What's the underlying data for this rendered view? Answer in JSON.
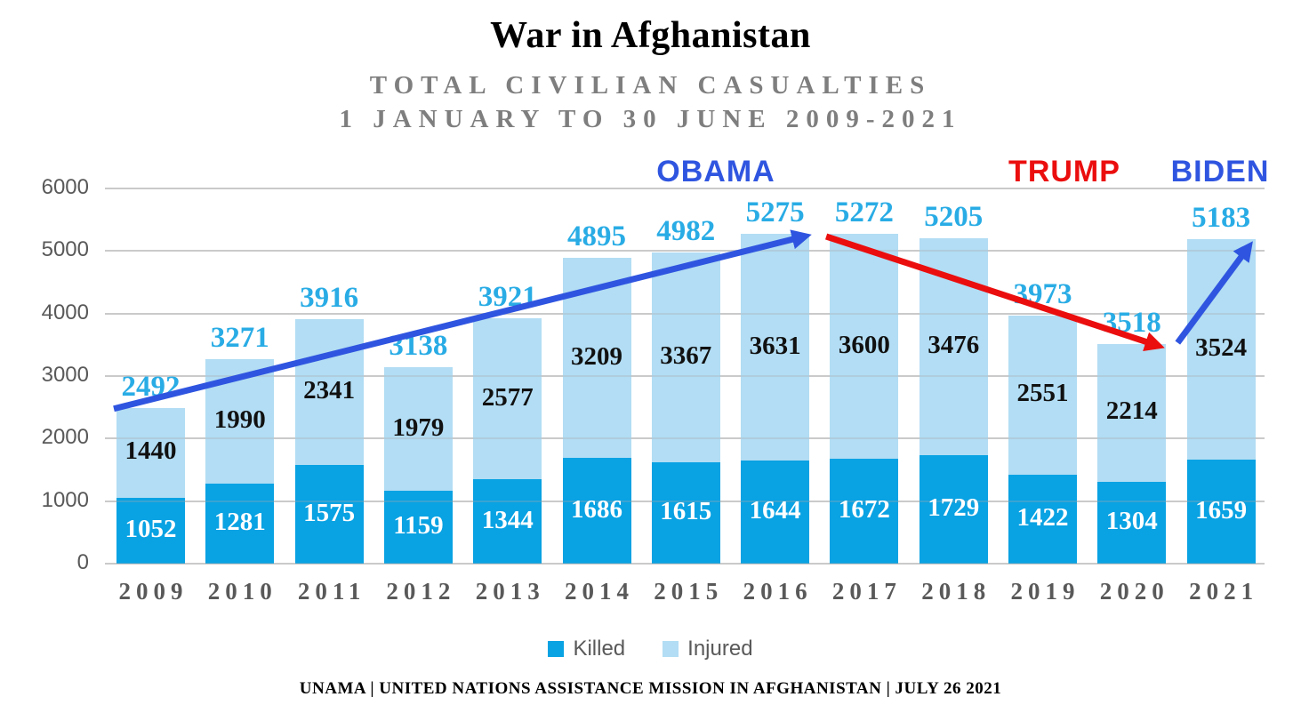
{
  "title": "War in Afghanistan",
  "subtitle": {
    "line1": "TOTAL CIVILIAN CASUALTIES",
    "line2": "1 JANUARY TO 30 JUNE 2009-2021"
  },
  "chart_data": {
    "type": "bar",
    "stacked": true,
    "title": "War in Afghanistan",
    "subtitle": "TOTAL CIVILIAN CASUALTIES 1 JANUARY TO 30 JUNE 2009-2021",
    "categories": [
      "2009",
      "2010",
      "2011",
      "2012",
      "2013",
      "2014",
      "2015",
      "2016",
      "2017",
      "2018",
      "2019",
      "2020",
      "2021"
    ],
    "series": [
      {
        "name": "Killed",
        "color": "#09a2e3",
        "label_color": "#ffffff",
        "values": [
          1052,
          1281,
          1575,
          1159,
          1344,
          1686,
          1615,
          1644,
          1672,
          1729,
          1422,
          1304,
          1659
        ]
      },
      {
        "name": "Injured",
        "color": "#b2ddf4",
        "label_color": "#111111",
        "values": [
          1440,
          1990,
          2341,
          1979,
          2577,
          3209,
          3367,
          3631,
          3600,
          3476,
          2551,
          2214,
          3524
        ]
      }
    ],
    "totals": [
      2492,
      3271,
      3916,
      3138,
      3921,
      4895,
      4982,
      5275,
      5272,
      5205,
      3973,
      3518,
      5183
    ],
    "total_label_color": "#29ace5",
    "ylim": [
      0,
      6000
    ],
    "ytick_step": 1000,
    "grid": "horizontal",
    "legend_position": "bottom"
  },
  "annotations": [
    {
      "label": "OBAMA",
      "color": "#2f55e0",
      "arrow_from": "2009",
      "arrow_to": "2016",
      "trend": "up"
    },
    {
      "label": "TRUMP",
      "color": "#eb0e0e",
      "arrow_from": "2016",
      "arrow_to": "2020",
      "trend": "down"
    },
    {
      "label": "BIDEN",
      "color": "#2f55e0",
      "arrow_from": "2020",
      "arrow_to": "2021",
      "trend": "up"
    }
  ],
  "footer": "UNAMA | UNITED NATIONS ASSISTANCE MISSION IN AFGHANISTAN | JULY 26 2021"
}
